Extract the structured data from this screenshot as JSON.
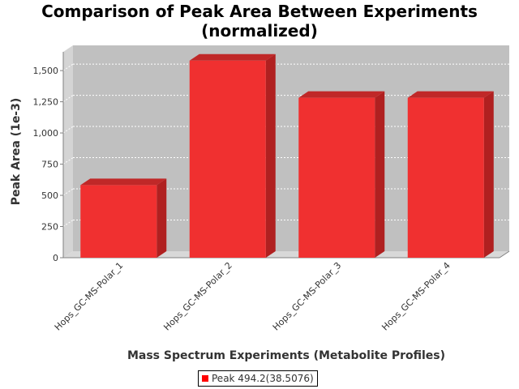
{
  "chart_data": {
    "type": "bar",
    "title": "Comparison of Peak Area Between Experiments",
    "subtitle": "(normalized)",
    "xlabel": "Mass Spectrum Experiments (Metabolite Profiles)",
    "ylabel": "Peak Area (1e-3)",
    "categories": [
      "Hops_GC-MS-Polar_1",
      "Hops_GC-MS-Polar_2",
      "Hops_GC-MS-Polar_3",
      "Hops_GC-MS-Polar_4"
    ],
    "series": [
      {
        "name": "Peak 494.2(38.5076)",
        "values": [
          582,
          1580,
          1282,
          1282
        ]
      }
    ],
    "ylim": [
      0,
      1650
    ],
    "yticks": [
      0,
      250,
      500,
      750,
      1000,
      1250,
      1500
    ],
    "ytick_labels": [
      "0",
      "250",
      "500",
      "750",
      "1,000",
      "1,250",
      "1,500"
    ],
    "grid": true,
    "legend_position": "bottom",
    "colors": {
      "bar_front": "#f03030",
      "bar_side": "#b02020",
      "bar_top": "#c02828",
      "plot_back": "#c0c0c0",
      "plot_floor": "#d8d8d8"
    }
  }
}
